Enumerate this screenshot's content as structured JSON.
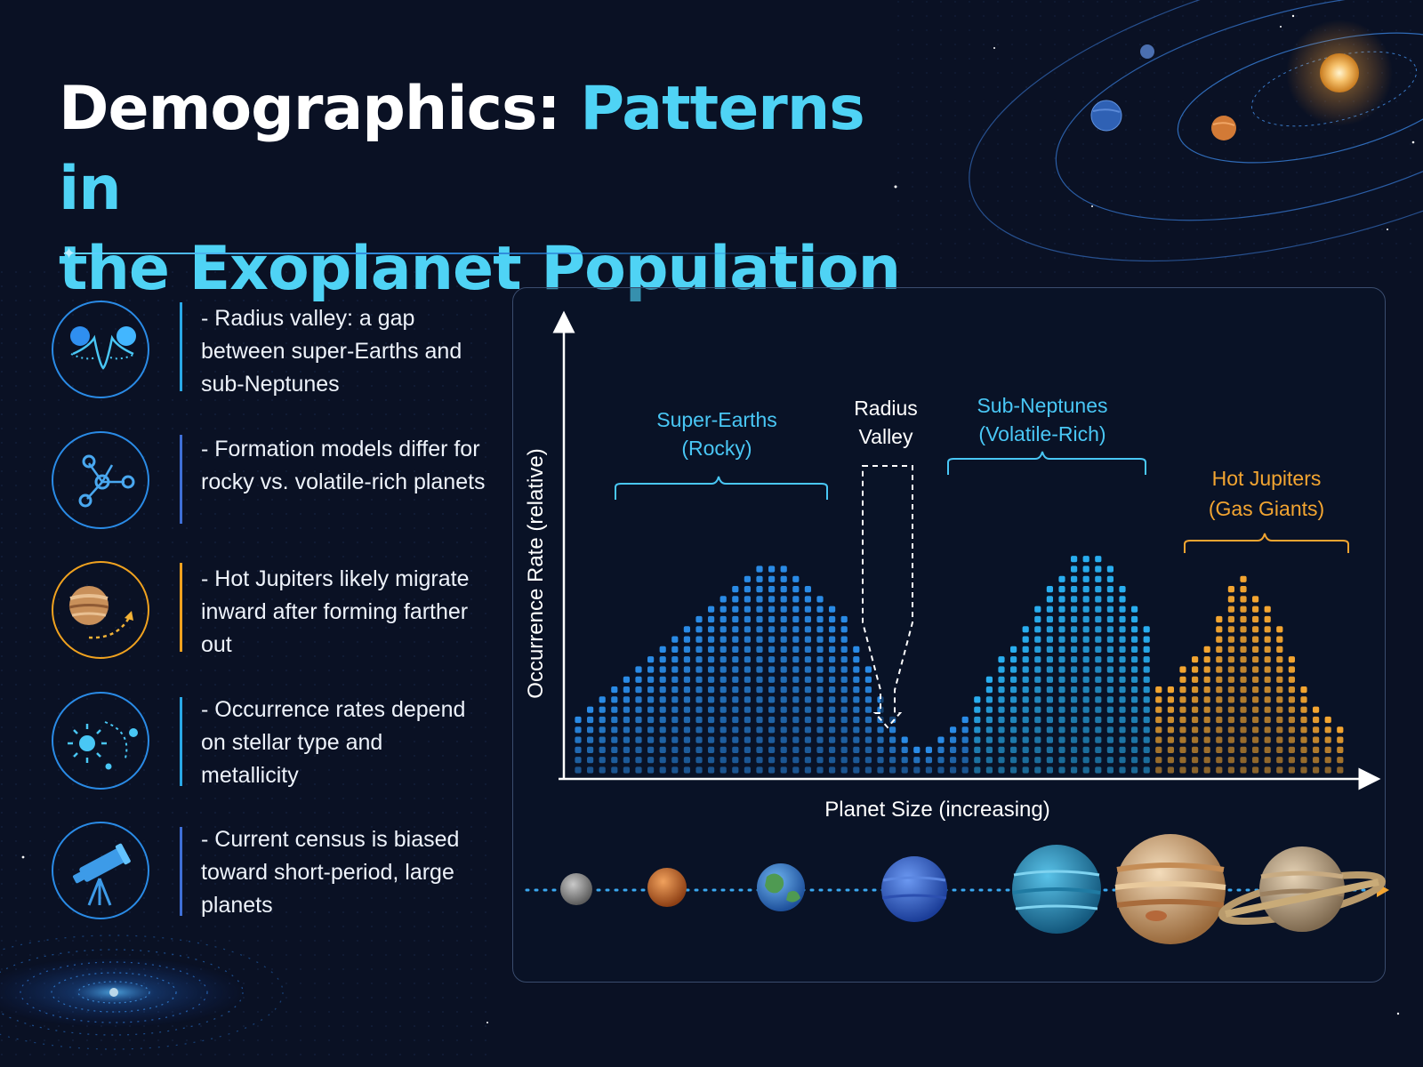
{
  "title": {
    "part1": "Demographics: ",
    "part2": "Patterns in",
    "part3": "the Exoplanet Population"
  },
  "colors": {
    "background": "#0a1124",
    "cyan": "#4fd3f5",
    "blue": "#2a8be6",
    "orange": "#f3a531"
  },
  "bullets": [
    {
      "icon": "radius-valley-icon",
      "accent": "#2aa8e6",
      "text": "- Radius valley: a gap between super-Earths and sub-Neptunes"
    },
    {
      "icon": "formation-network-icon",
      "accent": "#3f6fd6",
      "text": "- Formation models differ for rocky vs. volatile-rich planets"
    },
    {
      "icon": "hot-jupiter-migration-icon",
      "accent": "#f0a21f",
      "text": "- Hot Jupiters likely migrate inward after forming farther out"
    },
    {
      "icon": "star-orbit-icon",
      "accent": "#2aa8e6",
      "text": "- Occurrence rates depend on stellar type and metallicity"
    },
    {
      "icon": "telescope-icon",
      "accent": "#3f6fd6",
      "text": "- Current census is biased toward short-period, large planets"
    }
  ],
  "chart_data": {
    "type": "bar",
    "title": "",
    "xlabel": "Planet Size (increasing)",
    "ylabel": "Occurrence Rate (relative)",
    "y_unit": "stacked dot rows (relative)",
    "values": [
      6,
      7,
      8,
      9,
      10,
      11,
      12,
      13,
      14,
      15,
      16,
      17,
      18,
      19,
      20,
      21,
      21,
      21,
      20,
      19,
      18,
      17,
      16,
      13,
      11,
      8,
      6,
      4,
      3,
      3,
      4,
      5,
      6,
      8,
      10,
      12,
      13,
      15,
      17,
      19,
      20,
      22,
      22,
      22,
      21,
      19,
      17,
      15,
      9,
      9,
      11,
      12,
      13,
      16,
      19,
      20,
      18,
      17,
      15,
      12,
      9,
      7,
      6,
      5
    ],
    "groups": [
      {
        "name": "Super-Earths (rocky)",
        "label_line1": "Super-Earths",
        "label_line2": "(Rocky)",
        "start": 0,
        "end": 21,
        "color": "#2a8be6"
      },
      {
        "name": "Radius Valley",
        "label_line1": "Radius",
        "label_line2": "Valley",
        "start": 22,
        "end": 32,
        "color": "#2a8be6"
      },
      {
        "name": "Sub-Neptunes (volatile-rich)",
        "label_line1": "Sub-Neptunes",
        "label_line2": "(Volatile-Rich)",
        "start": 33,
        "end": 47,
        "color": "#29aef0"
      },
      {
        "name": "Hot Jupiters (gas giants)",
        "label_line1": "Hot Jupiters",
        "label_line2": "(Gas Giants)",
        "start": 48,
        "end": 63,
        "color": "#f3a531"
      }
    ],
    "legend": "none",
    "grid": false
  },
  "planet_strip": [
    "mercury-like-planet-icon",
    "mars-like-planet-icon",
    "earth-like-planet-icon",
    "neptune-like-planet-icon",
    "ocean-sub-neptune-icon",
    "jupiter-like-planet-icon",
    "saturn-like-planet-icon"
  ]
}
